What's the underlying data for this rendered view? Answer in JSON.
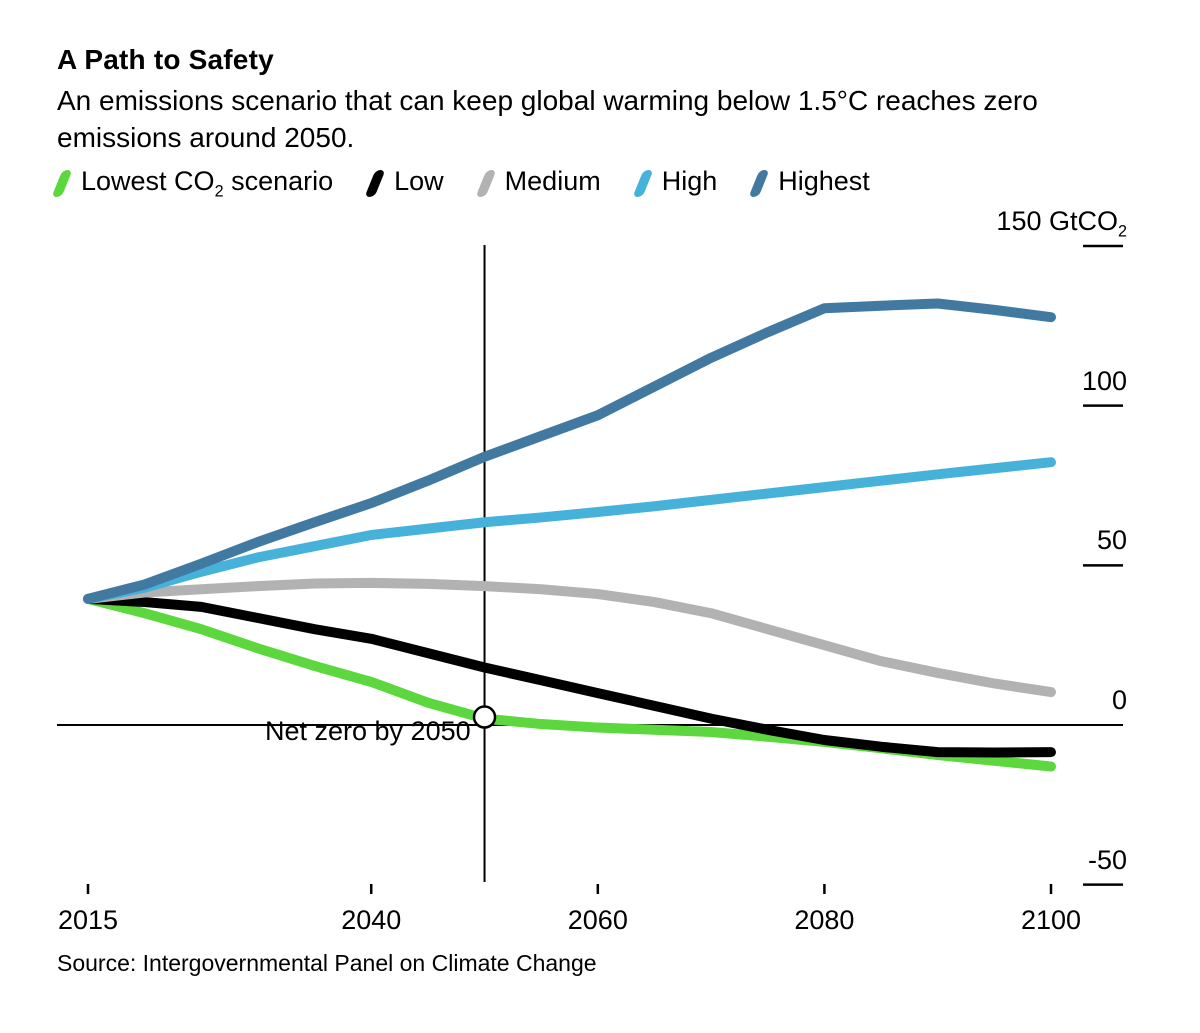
{
  "header": {
    "title": "A Path to Safety",
    "subtitle": "An emissions scenario that can keep global warming below 1.5°C reaches zero\nemissions around 2050."
  },
  "legend": {
    "items": [
      {
        "label_pre": "Lowest CO",
        "label_sub": "2",
        "label_post": " scenario",
        "color": "#5cd73e"
      },
      {
        "label_pre": "Low",
        "label_sub": "",
        "label_post": "",
        "color": "#000000"
      },
      {
        "label_pre": "Medium",
        "label_sub": "",
        "label_post": "",
        "color": "#b2b2b2"
      },
      {
        "label_pre": "High",
        "label_sub": "",
        "label_post": "",
        "color": "#47b2d9"
      },
      {
        "label_pre": "Highest",
        "label_sub": "",
        "label_post": "",
        "color": "#4279a1"
      }
    ]
  },
  "chart_data": {
    "type": "line",
    "x": [
      2015,
      2020,
      2025,
      2030,
      2035,
      2040,
      2045,
      2050,
      2055,
      2060,
      2065,
      2070,
      2075,
      2080,
      2085,
      2090,
      2095,
      2100
    ],
    "series": [
      {
        "name": "Lowest CO2 scenario",
        "color": "#5cd73e",
        "values": [
          39.5,
          35,
          30,
          24,
          18.5,
          13.5,
          7,
          2,
          0.3,
          -0.8,
          -1.5,
          -2.2,
          -3.7,
          -5.3,
          -7.3,
          -9.4,
          -11.2,
          -13
        ]
      },
      {
        "name": "Low",
        "color": "#000000",
        "values": [
          39.5,
          38.5,
          37,
          33.5,
          30,
          27,
          22.5,
          18,
          14,
          10,
          6,
          2,
          -1.5,
          -4.7,
          -6.8,
          -8.5,
          -8.6,
          -8.5
        ]
      },
      {
        "name": "Medium",
        "color": "#b2b2b2",
        "values": [
          39.5,
          41.5,
          42.5,
          43.5,
          44.3,
          44.5,
          44.2,
          43.5,
          42.5,
          41,
          38.5,
          35,
          30,
          25,
          20,
          16.3,
          13,
          10.3
        ]
      },
      {
        "name": "High",
        "color": "#47b2d9",
        "values": [
          39.5,
          43,
          48,
          52.5,
          56,
          59.5,
          61.5,
          63.5,
          65,
          66.7,
          68.5,
          70.5,
          72.5,
          74.5,
          76.5,
          78.5,
          80.4,
          82.3
        ]
      },
      {
        "name": "Highest",
        "color": "#4279a1",
        "values": [
          39.5,
          44,
          50.5,
          57.3,
          63.5,
          69.5,
          76.5,
          84,
          90.5,
          97,
          106,
          115,
          123,
          130.5,
          131.3,
          132,
          130,
          127.7
        ]
      }
    ],
    "title": "A Path to Safety",
    "xlabel": "",
    "ylabel": "GtCO2",
    "xlim": [
      2015,
      2100
    ],
    "ylim": [
      -60,
      160
    ],
    "grid": "zero-line-only",
    "legend_position": "top",
    "y_ticks": [
      {
        "value": 150,
        "label": "150 GtCO",
        "sub": "2"
      },
      {
        "value": 100,
        "label": "100",
        "sub": ""
      },
      {
        "value": 50,
        "label": "50",
        "sub": ""
      },
      {
        "value": 0,
        "label": "0",
        "sub": ""
      },
      {
        "value": -50,
        "label": "-50",
        "sub": ""
      }
    ],
    "x_ticks": [
      {
        "value": 2015,
        "label": "2015"
      },
      {
        "value": 2040,
        "label": "2040"
      },
      {
        "value": 2060,
        "label": "2060"
      },
      {
        "value": 2080,
        "label": "2080"
      },
      {
        "value": 2100,
        "label": "2100"
      }
    ],
    "annotation": {
      "text": "Net zero by 2050",
      "line_year": 2050,
      "marker": {
        "year": 2050,
        "value": 2.5
      }
    }
  },
  "footer": {
    "source": "Source: Intergovernmental Panel on Climate Change"
  }
}
